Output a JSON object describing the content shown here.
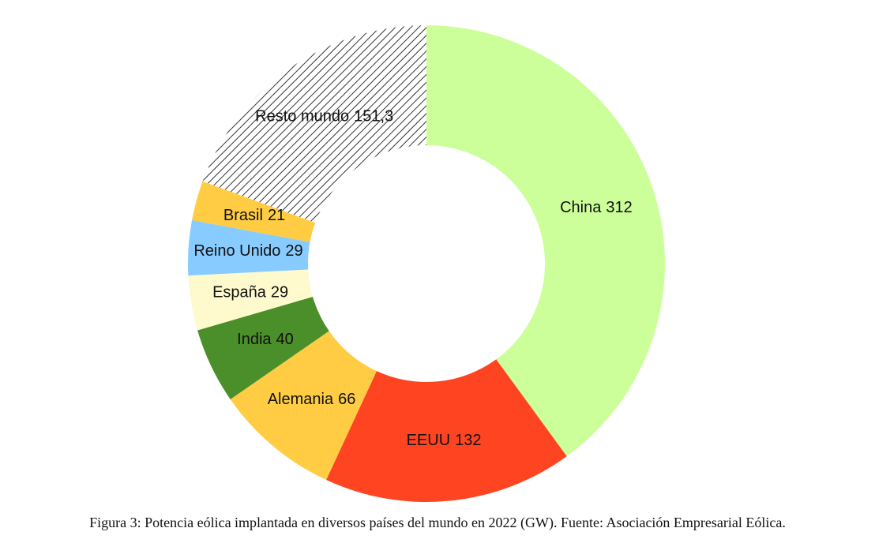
{
  "chart_data": {
    "type": "donut",
    "categories": [
      "China",
      "EEUU",
      "Alemania",
      "India",
      "España",
      "Reino Unido",
      "Brasil",
      "Resto mundo"
    ],
    "values": [
      312,
      132,
      66,
      40,
      29,
      29,
      21,
      151.3
    ],
    "value_labels": [
      "312",
      "132",
      "66",
      "40",
      "29",
      "29",
      "21",
      "151,3"
    ],
    "colors": [
      "#ccff99",
      "#ff4422",
      "#ffcc44",
      "#4a8f2a",
      "#fffacd",
      "#88ccff",
      "#ffcc44",
      "#444444"
    ],
    "hatch": [
      false,
      false,
      false,
      false,
      false,
      false,
      false,
      true
    ]
  },
  "caption": "Figura 3: Potencia eólica implantada en diversos países del mundo en 2022 (GW). Fuente: Asociación Empresarial Eólica."
}
